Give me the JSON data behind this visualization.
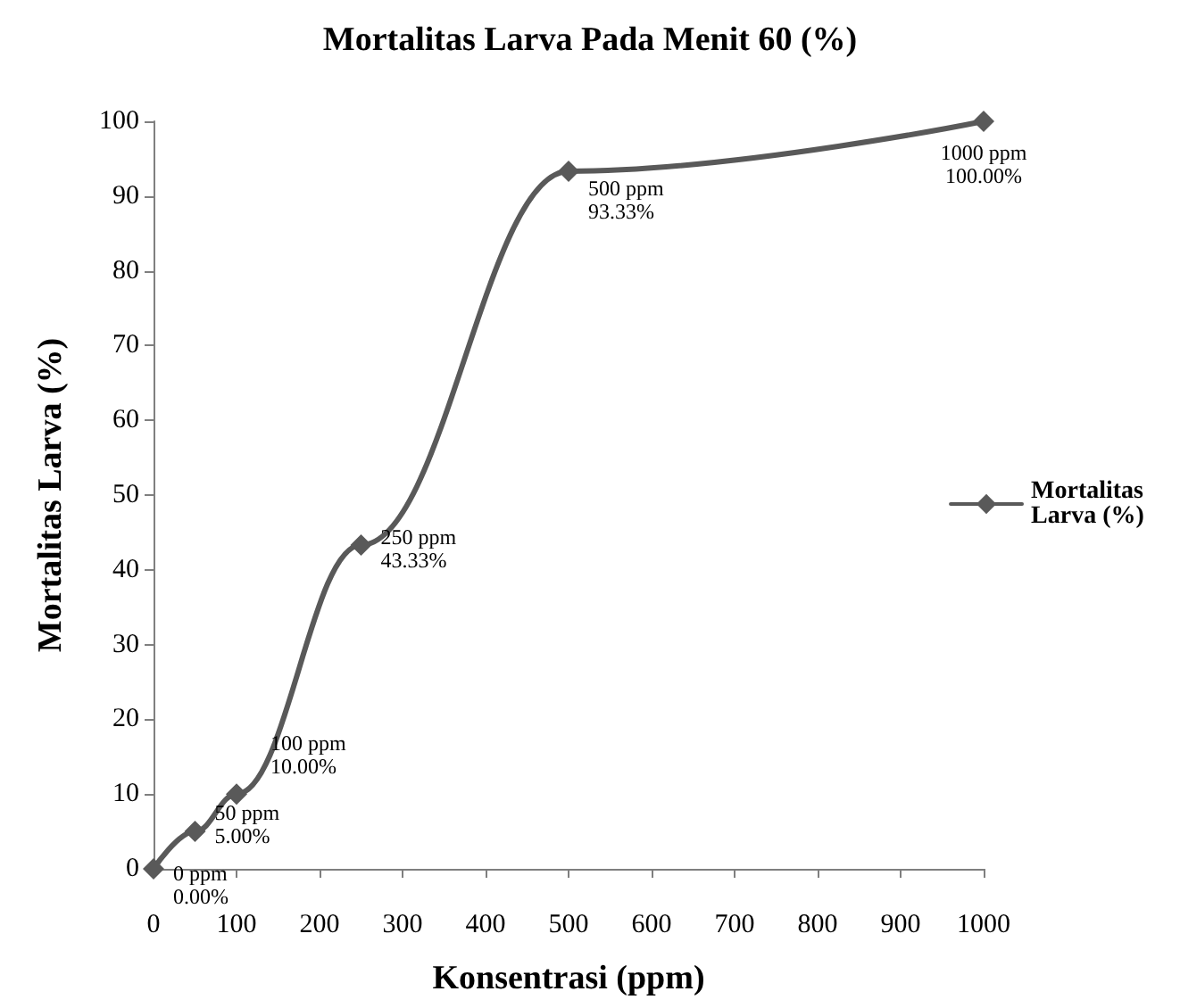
{
  "chart_data": {
    "type": "line",
    "title": "Mortalitas Larva Pada Menit 60 (%)",
    "xlabel": "Konsentrasi (ppm)",
    "ylabel": "Mortalitas Larva (%)",
    "x": [
      0,
      50,
      100,
      250,
      500,
      1000
    ],
    "series": [
      {
        "name": "Mortalitas Larva (%)",
        "color": "#595959",
        "values": [
          0,
          5,
          10,
          43.33,
          93.33,
          100
        ],
        "value_labels": [
          "0 ppm\n0.00%",
          "50 ppm\n5.00%",
          "100 ppm\n10.00%",
          "250 ppm\n43.33%",
          "500 ppm\n93.33%",
          "1000 ppm\n100.00%"
        ]
      }
    ],
    "xlim": [
      0,
      1000
    ],
    "xticks": [
      0,
      100,
      200,
      300,
      400,
      500,
      600,
      700,
      800,
      900,
      1000
    ],
    "ylim": [
      0,
      100
    ],
    "yticks": [
      0,
      10,
      20,
      30,
      40,
      50,
      60,
      70,
      80,
      90,
      100
    ],
    "marker": "diamond",
    "line_style": "solid",
    "legend": "right",
    "grid": false
  }
}
